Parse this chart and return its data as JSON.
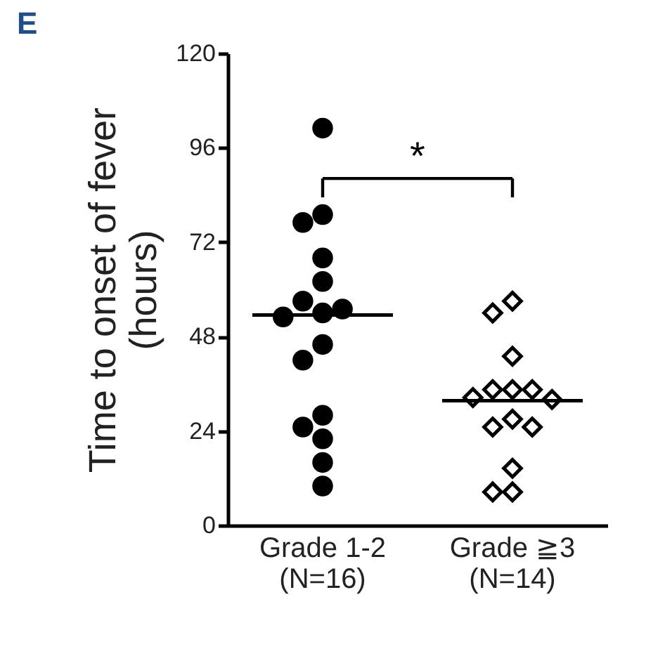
{
  "chart_data": {
    "type": "box",
    "title": "E",
    "ylabel": "Time to onset of fever\n(hours)",
    "categories": [
      "Grade 1-2\n(N=16)",
      "Grade ≧3\n(N=14)"
    ],
    "ylim": [
      0,
      120
    ],
    "yticks": [
      0,
      24,
      48,
      72,
      96,
      120
    ],
    "grid": false,
    "legend": false,
    "series": [
      {
        "x": [
          "Grade 1-2\n(N=16)",
          "Grade 1-2\n(N=16)",
          "Grade 1-2\n(N=16)",
          "Grade 1-2\n(N=16)",
          "Grade 1-2\n(N=16)",
          "Grade 1-2\n(N=16)",
          "Grade 1-2\n(N=16)",
          "Grade 1-2\n(N=16)",
          "Grade 1-2\n(N=16)",
          "Grade 1-2\n(N=16)",
          "Grade 1-2\n(N=16)",
          "Grade 1-2\n(N=16)",
          "Grade 1-2\n(N=16)",
          "Grade 1-2\n(N=16)",
          "Grade 1-2\n(N=16)",
          "Grade 1-2\n(N=16)"
        ],
        "values": [
          101,
          79,
          77,
          68,
          62,
          57,
          54,
          55,
          53,
          46,
          42,
          28,
          25,
          22,
          16,
          10
        ],
        "color": "#000000",
        "marker": "circle",
        "type": "scatter"
      },
      {
        "x": [
          "Grade ≧3\n(N=14)",
          "Grade ≧3\n(N=14)",
          "Grade ≧3\n(N=14)",
          "Grade ≧3\n(N=14)",
          "Grade ≧3\n(N=14)",
          "Grade ≧3\n(N=14)",
          "Grade ≧3\n(N=14)",
          "Grade ≧3\n(N=14)",
          "Grade ≧3\n(N=14)",
          "Grade ≧3\n(N=14)",
          "Grade ≧3\n(N=14)",
          "Grade ≧3\n(N=14)",
          "Grade ≧3\n(N=14)",
          "Grade ≧3\n(N=14)"
        ],
        "values": [
          57,
          54,
          43,
          34.5,
          34.5,
          34.5,
          32.5,
          32,
          27,
          25,
          25,
          14.5,
          8.5,
          8.5
        ],
        "color": "#000000",
        "marker": "diamond",
        "type": "scatter"
      }
    ],
    "boxes": [
      {
        "low": 53.5,
        "q1": 53.5,
        "median": 53.5,
        "q3": 53.5,
        "high": 53.5
      },
      {
        "low": 31.7,
        "q1": 31.7,
        "median": 31.7,
        "q3": 31.7,
        "high": 31.7
      }
    ],
    "annotations": [
      "*"
    ]
  }
}
